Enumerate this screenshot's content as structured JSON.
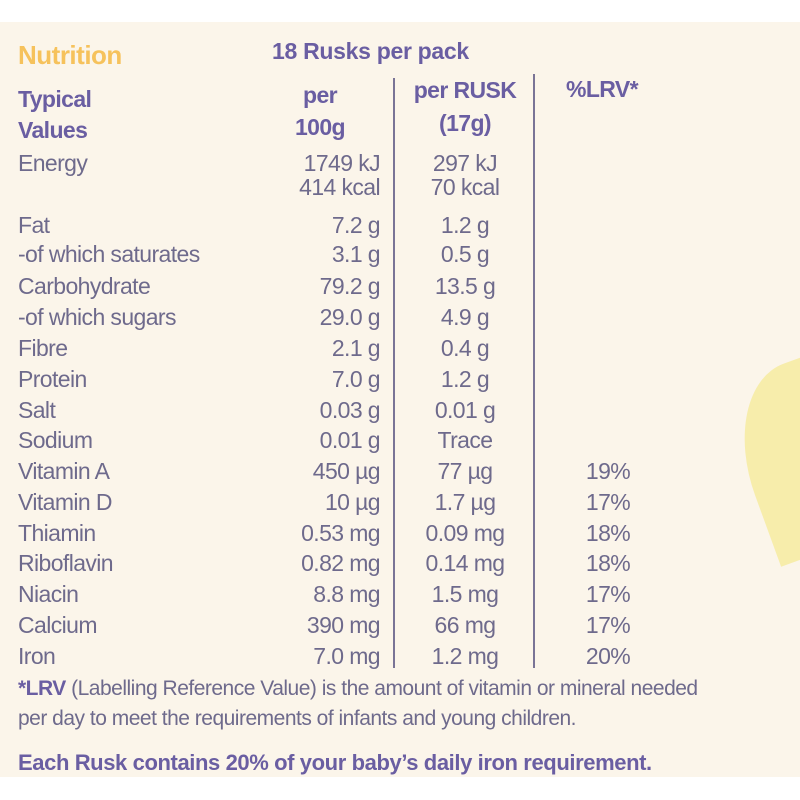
{
  "title": "Nutrition",
  "pack": "18 Rusks per pack",
  "headers": {
    "label_1": "Typical",
    "label_2": "Values",
    "col1_1": "per",
    "col1_2": "100g",
    "col2_1": "per RUSK",
    "col2_2": "(17g)",
    "col3": "%LRV*"
  },
  "rows": [
    {
      "label": "Energy",
      "per100": "1749 kJ",
      "perRusk": "297 kJ",
      "lrv": ""
    },
    {
      "label": "",
      "per100": "414 kcal",
      "perRusk": "70 kcal",
      "lrv": ""
    },
    {
      "label": "Fat",
      "per100": "7.2 g",
      "perRusk": "1.2 g",
      "lrv": ""
    },
    {
      "label": "-of which saturates",
      "per100": "3.1 g",
      "perRusk": "0.5 g",
      "lrv": ""
    },
    {
      "label": "Carbohydrate",
      "per100": "79.2 g",
      "perRusk": "13.5 g",
      "lrv": ""
    },
    {
      "label": "-of which sugars",
      "per100": "29.0 g",
      "perRusk": "4.9 g",
      "lrv": ""
    },
    {
      "label": "Fibre",
      "per100": "2.1 g",
      "perRusk": "0.4 g",
      "lrv": ""
    },
    {
      "label": "Protein",
      "per100": "7.0 g",
      "perRusk": "1.2 g",
      "lrv": ""
    },
    {
      "label": "Salt",
      "per100": "0.03 g",
      "perRusk": "0.01 g",
      "lrv": ""
    },
    {
      "label": "Sodium",
      "per100": "0.01 g",
      "perRusk": "Trace",
      "lrv": ""
    },
    {
      "label": "Vitamin A",
      "per100": "450 µg",
      "perRusk": "77 µg",
      "lrv": "19%"
    },
    {
      "label": "Vitamin D",
      "per100": "10 µg",
      "perRusk": "1.7 µg",
      "lrv": "17%"
    },
    {
      "label": "Thiamin",
      "per100": "0.53 mg",
      "perRusk": "0.09 mg",
      "lrv": "18%"
    },
    {
      "label": "Riboflavin",
      "per100": "0.82 mg",
      "perRusk": "0.14 mg",
      "lrv": "18%"
    },
    {
      "label": "Niacin",
      "per100": "8.8 mg",
      "perRusk": "1.5 mg",
      "lrv": "17%"
    },
    {
      "label": "Calcium",
      "per100": "390 mg",
      "perRusk": "66 mg",
      "lrv": "17%"
    },
    {
      "label": "Iron",
      "per100": "7.0 mg",
      "perRusk": "1.2 mg",
      "lrv": "20%"
    }
  ],
  "footnote": {
    "lrv_bold": "*LRV",
    "line1": " (Labelling Reference Value) is the amount of vitamin or mineral needed",
    "line2": "per day to meet the requirements of infants and young children."
  },
  "iron_statement": "Each Rusk contains 20% of your baby’s daily iron requirement.",
  "colors": {
    "background": "#fbf5ea",
    "title": "#f6c25c",
    "text": "#6a5ea2"
  }
}
